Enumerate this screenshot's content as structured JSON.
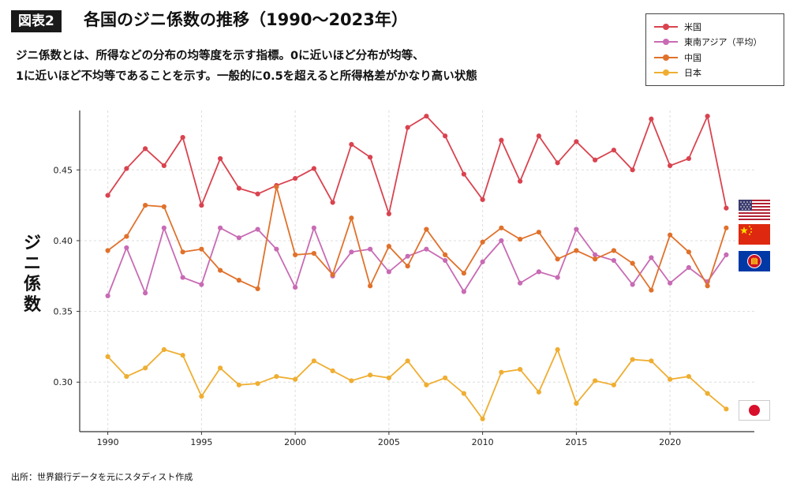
{
  "figure": {
    "label": "図表2",
    "title": "各国のジニ係数の推移（1990〜2023年）",
    "description_lines": [
      "ジニ係数とは、所得などの分布の均等度を示す指標。0に近いほど分布が均等、",
      "1に近いほど不均等であることを示す。一般的に0.5を超えると所得格差がかなり高い状態"
    ],
    "source": "出所：世界銀行データを元にスタディスト作成"
  },
  "colors": {
    "us": "#d9434f",
    "sea": "#c86bb4",
    "cn": "#e0712b",
    "jp": "#efae32"
  },
  "flags": [
    "us-flag-icon",
    "china-flag-icon",
    "asean-flag-icon",
    "japan-flag-icon"
  ],
  "chart_data": {
    "type": "line",
    "title": "各国のジニ係数の推移（1990〜2023年）",
    "xlabel": "",
    "ylabel": "ジニ係数",
    "xlim": [
      1988.5,
      2024.5
    ],
    "ylim": [
      0.265,
      0.492
    ],
    "xticks": [
      1990,
      1995,
      2000,
      2005,
      2010,
      2015,
      2020
    ],
    "yticks": [
      0.3,
      0.35,
      0.4,
      0.45
    ],
    "ytick_labels": [
      "0.30",
      "0.35",
      "0.40",
      "0.45"
    ],
    "grid": true,
    "legend_position": "top-right",
    "x": [
      1990,
      1991,
      1992,
      1993,
      1994,
      1995,
      1996,
      1997,
      1998,
      1999,
      2000,
      2001,
      2002,
      2003,
      2004,
      2005,
      2006,
      2007,
      2008,
      2009,
      2010,
      2011,
      2012,
      2013,
      2014,
      2015,
      2016,
      2017,
      2018,
      2019,
      2020,
      2021,
      2022,
      2023
    ],
    "series": [
      {
        "name": "米国",
        "color_key": "us",
        "values": [
          0.432,
          0.451,
          0.465,
          0.453,
          0.473,
          0.425,
          0.458,
          0.437,
          0.433,
          0.439,
          0.444,
          0.451,
          0.427,
          0.468,
          0.459,
          0.419,
          0.48,
          0.488,
          0.474,
          0.447,
          0.429,
          0.471,
          0.442,
          0.474,
          0.455,
          0.47,
          0.457,
          0.464,
          0.45,
          0.486,
          0.453,
          0.458,
          0.488,
          0.423
        ]
      },
      {
        "name": "東南アジア（平均）",
        "color_key": "sea",
        "values": [
          0.361,
          0.395,
          0.363,
          0.409,
          0.374,
          0.369,
          0.409,
          0.402,
          0.408,
          0.394,
          0.367,
          0.409,
          0.375,
          0.392,
          0.394,
          0.378,
          0.389,
          0.394,
          0.386,
          0.364,
          0.385,
          0.4,
          0.37,
          0.378,
          0.374,
          0.408,
          0.39,
          0.386,
          0.369,
          0.388,
          0.37,
          0.381,
          0.371,
          0.39
        ]
      },
      {
        "name": "中国",
        "color_key": "cn",
        "values": [
          0.393,
          0.403,
          0.425,
          0.424,
          0.392,
          0.394,
          0.379,
          0.372,
          0.366,
          0.438,
          0.39,
          0.391,
          0.376,
          0.416,
          0.368,
          0.396,
          0.382,
          0.408,
          0.39,
          0.377,
          0.399,
          0.409,
          0.401,
          0.406,
          0.387,
          0.393,
          0.387,
          0.393,
          0.384,
          0.365,
          0.404,
          0.392,
          0.368,
          0.409
        ]
      },
      {
        "name": "日本",
        "color_key": "jp",
        "values": [
          0.318,
          0.304,
          0.31,
          0.323,
          0.319,
          0.29,
          0.31,
          0.298,
          0.299,
          0.304,
          0.302,
          0.315,
          0.308,
          0.301,
          0.305,
          0.303,
          0.315,
          0.298,
          0.303,
          0.292,
          0.274,
          0.307,
          0.309,
          0.293,
          0.323,
          0.285,
          0.301,
          0.298,
          0.316,
          0.315,
          0.302,
          0.304,
          0.292,
          0.281
        ]
      }
    ]
  }
}
